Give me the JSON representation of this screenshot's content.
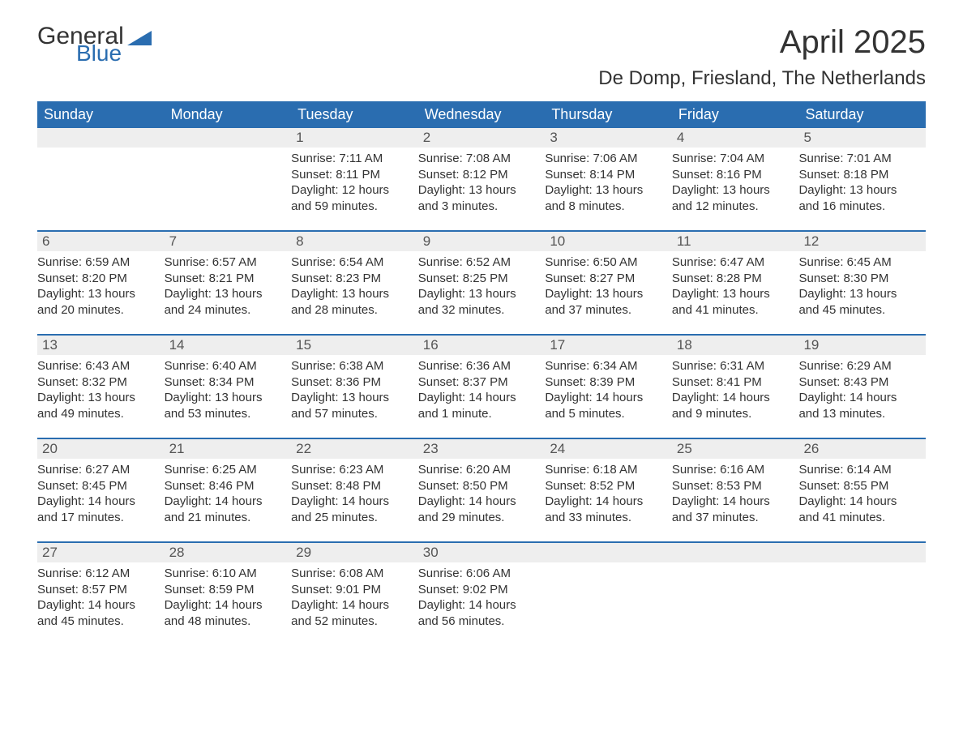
{
  "logo": {
    "word1": "General",
    "word2": "Blue"
  },
  "header": {
    "month_title": "April 2025",
    "location": "De Domp, Friesland, The Netherlands"
  },
  "colors": {
    "header_bg": "#2a6db0",
    "header_text": "#ffffff",
    "daynum_bg": "#eeeeee",
    "body_text": "#333333",
    "row_divider": "#2a6db0",
    "page_bg": "#ffffff"
  },
  "day_names": [
    "Sunday",
    "Monday",
    "Tuesday",
    "Wednesday",
    "Thursday",
    "Friday",
    "Saturday"
  ],
  "weeks": [
    [
      {
        "daynum": "",
        "sunrise": "",
        "sunset": "",
        "daylight1": "",
        "daylight2": ""
      },
      {
        "daynum": "",
        "sunrise": "",
        "sunset": "",
        "daylight1": "",
        "daylight2": ""
      },
      {
        "daynum": "1",
        "sunrise": "Sunrise: 7:11 AM",
        "sunset": "Sunset: 8:11 PM",
        "daylight1": "Daylight: 12 hours",
        "daylight2": "and 59 minutes."
      },
      {
        "daynum": "2",
        "sunrise": "Sunrise: 7:08 AM",
        "sunset": "Sunset: 8:12 PM",
        "daylight1": "Daylight: 13 hours",
        "daylight2": "and 3 minutes."
      },
      {
        "daynum": "3",
        "sunrise": "Sunrise: 7:06 AM",
        "sunset": "Sunset: 8:14 PM",
        "daylight1": "Daylight: 13 hours",
        "daylight2": "and 8 minutes."
      },
      {
        "daynum": "4",
        "sunrise": "Sunrise: 7:04 AM",
        "sunset": "Sunset: 8:16 PM",
        "daylight1": "Daylight: 13 hours",
        "daylight2": "and 12 minutes."
      },
      {
        "daynum": "5",
        "sunrise": "Sunrise: 7:01 AM",
        "sunset": "Sunset: 8:18 PM",
        "daylight1": "Daylight: 13 hours",
        "daylight2": "and 16 minutes."
      }
    ],
    [
      {
        "daynum": "6",
        "sunrise": "Sunrise: 6:59 AM",
        "sunset": "Sunset: 8:20 PM",
        "daylight1": "Daylight: 13 hours",
        "daylight2": "and 20 minutes."
      },
      {
        "daynum": "7",
        "sunrise": "Sunrise: 6:57 AM",
        "sunset": "Sunset: 8:21 PM",
        "daylight1": "Daylight: 13 hours",
        "daylight2": "and 24 minutes."
      },
      {
        "daynum": "8",
        "sunrise": "Sunrise: 6:54 AM",
        "sunset": "Sunset: 8:23 PM",
        "daylight1": "Daylight: 13 hours",
        "daylight2": "and 28 minutes."
      },
      {
        "daynum": "9",
        "sunrise": "Sunrise: 6:52 AM",
        "sunset": "Sunset: 8:25 PM",
        "daylight1": "Daylight: 13 hours",
        "daylight2": "and 32 minutes."
      },
      {
        "daynum": "10",
        "sunrise": "Sunrise: 6:50 AM",
        "sunset": "Sunset: 8:27 PM",
        "daylight1": "Daylight: 13 hours",
        "daylight2": "and 37 minutes."
      },
      {
        "daynum": "11",
        "sunrise": "Sunrise: 6:47 AM",
        "sunset": "Sunset: 8:28 PM",
        "daylight1": "Daylight: 13 hours",
        "daylight2": "and 41 minutes."
      },
      {
        "daynum": "12",
        "sunrise": "Sunrise: 6:45 AM",
        "sunset": "Sunset: 8:30 PM",
        "daylight1": "Daylight: 13 hours",
        "daylight2": "and 45 minutes."
      }
    ],
    [
      {
        "daynum": "13",
        "sunrise": "Sunrise: 6:43 AM",
        "sunset": "Sunset: 8:32 PM",
        "daylight1": "Daylight: 13 hours",
        "daylight2": "and 49 minutes."
      },
      {
        "daynum": "14",
        "sunrise": "Sunrise: 6:40 AM",
        "sunset": "Sunset: 8:34 PM",
        "daylight1": "Daylight: 13 hours",
        "daylight2": "and 53 minutes."
      },
      {
        "daynum": "15",
        "sunrise": "Sunrise: 6:38 AM",
        "sunset": "Sunset: 8:36 PM",
        "daylight1": "Daylight: 13 hours",
        "daylight2": "and 57 minutes."
      },
      {
        "daynum": "16",
        "sunrise": "Sunrise: 6:36 AM",
        "sunset": "Sunset: 8:37 PM",
        "daylight1": "Daylight: 14 hours",
        "daylight2": "and 1 minute."
      },
      {
        "daynum": "17",
        "sunrise": "Sunrise: 6:34 AM",
        "sunset": "Sunset: 8:39 PM",
        "daylight1": "Daylight: 14 hours",
        "daylight2": "and 5 minutes."
      },
      {
        "daynum": "18",
        "sunrise": "Sunrise: 6:31 AM",
        "sunset": "Sunset: 8:41 PM",
        "daylight1": "Daylight: 14 hours",
        "daylight2": "and 9 minutes."
      },
      {
        "daynum": "19",
        "sunrise": "Sunrise: 6:29 AM",
        "sunset": "Sunset: 8:43 PM",
        "daylight1": "Daylight: 14 hours",
        "daylight2": "and 13 minutes."
      }
    ],
    [
      {
        "daynum": "20",
        "sunrise": "Sunrise: 6:27 AM",
        "sunset": "Sunset: 8:45 PM",
        "daylight1": "Daylight: 14 hours",
        "daylight2": "and 17 minutes."
      },
      {
        "daynum": "21",
        "sunrise": "Sunrise: 6:25 AM",
        "sunset": "Sunset: 8:46 PM",
        "daylight1": "Daylight: 14 hours",
        "daylight2": "and 21 minutes."
      },
      {
        "daynum": "22",
        "sunrise": "Sunrise: 6:23 AM",
        "sunset": "Sunset: 8:48 PM",
        "daylight1": "Daylight: 14 hours",
        "daylight2": "and 25 minutes."
      },
      {
        "daynum": "23",
        "sunrise": "Sunrise: 6:20 AM",
        "sunset": "Sunset: 8:50 PM",
        "daylight1": "Daylight: 14 hours",
        "daylight2": "and 29 minutes."
      },
      {
        "daynum": "24",
        "sunrise": "Sunrise: 6:18 AM",
        "sunset": "Sunset: 8:52 PM",
        "daylight1": "Daylight: 14 hours",
        "daylight2": "and 33 minutes."
      },
      {
        "daynum": "25",
        "sunrise": "Sunrise: 6:16 AM",
        "sunset": "Sunset: 8:53 PM",
        "daylight1": "Daylight: 14 hours",
        "daylight2": "and 37 minutes."
      },
      {
        "daynum": "26",
        "sunrise": "Sunrise: 6:14 AM",
        "sunset": "Sunset: 8:55 PM",
        "daylight1": "Daylight: 14 hours",
        "daylight2": "and 41 minutes."
      }
    ],
    [
      {
        "daynum": "27",
        "sunrise": "Sunrise: 6:12 AM",
        "sunset": "Sunset: 8:57 PM",
        "daylight1": "Daylight: 14 hours",
        "daylight2": "and 45 minutes."
      },
      {
        "daynum": "28",
        "sunrise": "Sunrise: 6:10 AM",
        "sunset": "Sunset: 8:59 PM",
        "daylight1": "Daylight: 14 hours",
        "daylight2": "and 48 minutes."
      },
      {
        "daynum": "29",
        "sunrise": "Sunrise: 6:08 AM",
        "sunset": "Sunset: 9:01 PM",
        "daylight1": "Daylight: 14 hours",
        "daylight2": "and 52 minutes."
      },
      {
        "daynum": "30",
        "sunrise": "Sunrise: 6:06 AM",
        "sunset": "Sunset: 9:02 PM",
        "daylight1": "Daylight: 14 hours",
        "daylight2": "and 56 minutes."
      },
      {
        "daynum": "",
        "sunrise": "",
        "sunset": "",
        "daylight1": "",
        "daylight2": ""
      },
      {
        "daynum": "",
        "sunrise": "",
        "sunset": "",
        "daylight1": "",
        "daylight2": ""
      },
      {
        "daynum": "",
        "sunrise": "",
        "sunset": "",
        "daylight1": "",
        "daylight2": ""
      }
    ]
  ]
}
